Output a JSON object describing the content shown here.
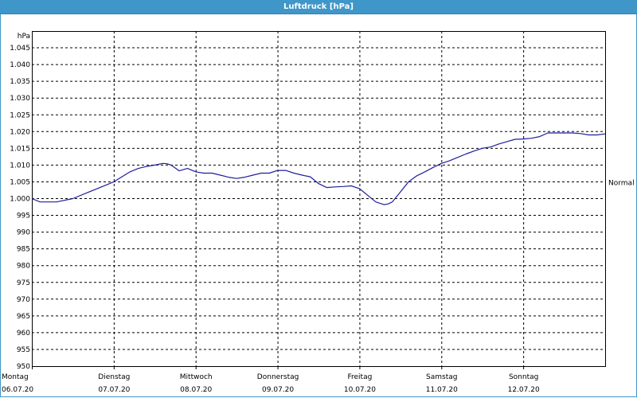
{
  "window": {
    "title": "Luftdruck [hPa]"
  },
  "chart_data": {
    "type": "line",
    "title": "Luftdruck [hPa]",
    "ylabel": "hPa",
    "ylim": [
      950,
      1050
    ],
    "yticks": [
      950,
      955,
      960,
      965,
      970,
      975,
      980,
      985,
      990,
      995,
      1000,
      1005,
      1010,
      1015,
      1020,
      1025,
      1030,
      1035,
      1040,
      1045
    ],
    "ytick_labels": [
      "950",
      "955",
      "960",
      "965",
      "970",
      "975",
      "980",
      "985",
      "990",
      "995",
      "1.000",
      "1.005",
      "1.010",
      "1.015",
      "1.020",
      "1.025",
      "1.030",
      "1.035",
      "1.040",
      "1.045"
    ],
    "xlim": [
      0,
      7
    ],
    "x_day_ticks": [
      {
        "day": "Montag",
        "date": "06.07.20"
      },
      {
        "day": "Dienstag",
        "date": "07.07.20"
      },
      {
        "day": "Mittwoch",
        "date": "08.07.20"
      },
      {
        "day": "Donnerstag",
        "date": "09.07.20"
      },
      {
        "day": "Freitag",
        "date": "10.07.20"
      },
      {
        "day": "Samstag",
        "date": "11.07.20"
      },
      {
        "day": "Sonntag",
        "date": "12.07.20"
      }
    ],
    "reference_line": {
      "label": "Normal",
      "value": 1005
    },
    "grid": true,
    "line_color": "#1f1f9c",
    "series": [
      {
        "x": [
          0,
          0.1,
          0.3,
          0.5,
          0.7,
          0.8,
          0.9,
          1.0,
          1.1,
          1.2,
          1.3,
          1.4,
          1.5,
          1.6,
          1.65,
          1.7,
          1.8,
          1.9,
          2.0,
          2.1,
          2.2,
          2.3,
          2.4,
          2.5,
          2.6,
          2.7,
          2.8,
          2.9,
          3.0,
          3.1,
          3.2,
          3.3,
          3.4,
          3.5,
          3.6,
          3.7,
          3.8,
          3.9,
          4.0,
          4.1,
          4.2,
          4.3,
          4.35,
          4.4,
          4.5,
          4.6,
          4.7,
          4.8,
          4.9,
          5.0,
          5.1,
          5.2,
          5.3,
          5.4,
          5.5,
          5.6,
          5.7,
          5.8,
          5.9,
          6.0,
          6.1,
          6.2,
          6.3,
          6.4,
          6.5,
          6.6,
          6.7,
          6.8,
          6.9,
          7.0
        ],
        "y": [
          1000.0,
          999.0,
          999.0,
          1000.0,
          1002.0,
          1003.0,
          1004.0,
          1005.0,
          1006.5,
          1008.0,
          1009.0,
          1009.6,
          1010.0,
          1010.5,
          1010.4,
          1010.0,
          1008.3,
          1009.0,
          1008.0,
          1007.6,
          1007.6,
          1007.0,
          1006.4,
          1006.0,
          1006.4,
          1007.0,
          1007.6,
          1007.6,
          1008.4,
          1008.4,
          1007.6,
          1007.0,
          1006.5,
          1004.5,
          1003.3,
          1003.5,
          1003.6,
          1003.8,
          1003.0,
          1001.0,
          999.0,
          998.2,
          998.4,
          999.0,
          1002.0,
          1005.0,
          1006.8,
          1008.0,
          1009.3,
          1010.5,
          1011.3,
          1012.3,
          1013.3,
          1014.2,
          1015.0,
          1015.4,
          1016.3,
          1017.0,
          1017.7,
          1017.8,
          1018.0,
          1018.5,
          1019.6,
          1019.6,
          1019.6,
          1019.6,
          1019.4,
          1019.0,
          1019.0,
          1019.3
        ]
      }
    ]
  }
}
